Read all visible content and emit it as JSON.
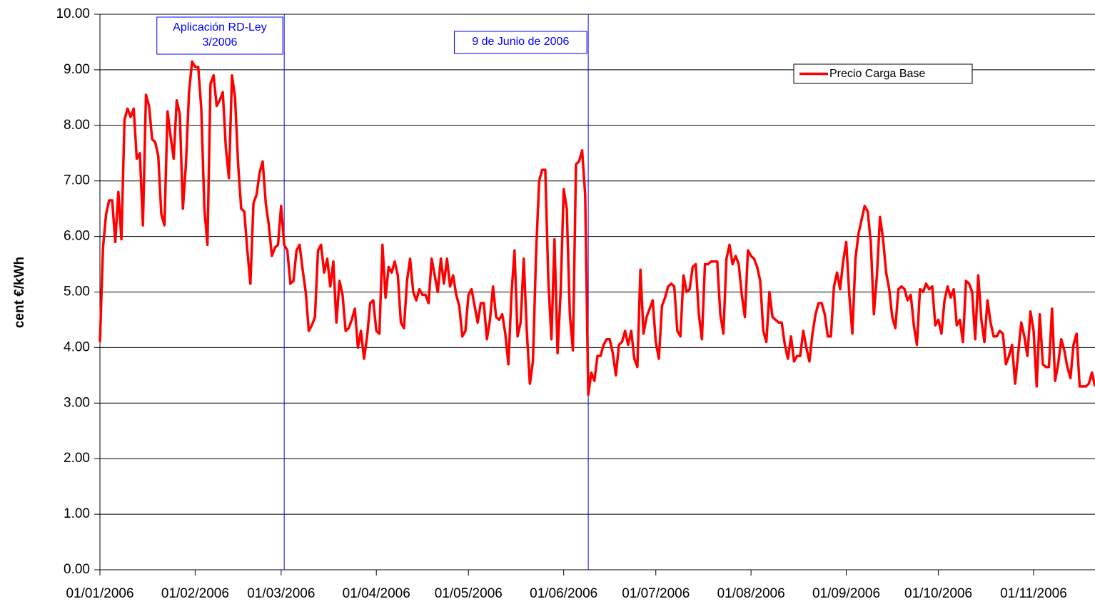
{
  "chart_data": {
    "type": "line",
    "y_label": "cent €/kWh",
    "x": [
      "01/01/2006",
      "02/01/2006",
      "03/01/2006",
      "04/01/2006",
      "05/01/2006",
      "06/01/2006",
      "07/01/2006",
      "08/01/2006",
      "09/01/2006",
      "10/01/2006",
      "11/01/2006",
      "12/01/2006",
      "13/01/2006",
      "14/01/2006",
      "15/01/2006",
      "16/01/2006",
      "17/01/2006",
      "18/01/2006",
      "19/01/2006",
      "20/01/2006",
      "21/01/2006",
      "22/01/2006",
      "23/01/2006",
      "24/01/2006",
      "25/01/2006",
      "26/01/2006",
      "27/01/2006",
      "28/01/2006",
      "29/01/2006",
      "30/01/2006",
      "31/01/2006",
      "01/02/2006",
      "02/02/2006",
      "03/02/2006",
      "04/02/2006",
      "05/02/2006",
      "06/02/2006",
      "07/02/2006",
      "08/02/2006",
      "09/02/2006",
      "10/02/2006",
      "11/02/2006",
      "12/02/2006",
      "13/02/2006",
      "14/02/2006",
      "15/02/2006",
      "16/02/2006",
      "17/02/2006",
      "18/02/2006",
      "19/02/2006",
      "20/02/2006",
      "21/02/2006",
      "22/02/2006",
      "23/02/2006",
      "24/02/2006",
      "25/02/2006",
      "26/02/2006",
      "27/02/2006",
      "28/02/2006",
      "01/03/2006",
      "02/03/2006",
      "03/03/2006",
      "04/03/2006",
      "05/03/2006",
      "06/03/2006",
      "07/03/2006",
      "08/03/2006",
      "09/03/2006",
      "10/03/2006",
      "11/03/2006",
      "12/03/2006",
      "13/03/2006",
      "14/03/2006",
      "15/03/2006",
      "16/03/2006",
      "17/03/2006",
      "18/03/2006",
      "19/03/2006",
      "20/03/2006",
      "21/03/2006",
      "22/03/2006",
      "23/03/2006",
      "24/03/2006",
      "25/03/2006",
      "26/03/2006",
      "27/03/2006",
      "28/03/2006",
      "29/03/2006",
      "30/03/2006",
      "31/03/2006",
      "01/04/2006",
      "02/04/2006",
      "03/04/2006",
      "04/04/2006",
      "05/04/2006",
      "06/04/2006",
      "07/04/2006",
      "08/04/2006",
      "09/04/2006",
      "10/04/2006",
      "11/04/2006",
      "12/04/2006",
      "13/04/2006",
      "14/04/2006",
      "15/04/2006",
      "16/04/2006",
      "17/04/2006",
      "18/04/2006",
      "19/04/2006",
      "20/04/2006",
      "21/04/2006",
      "22/04/2006",
      "23/04/2006",
      "24/04/2006",
      "25/04/2006",
      "26/04/2006",
      "27/04/2006",
      "28/04/2006",
      "29/04/2006",
      "30/04/2006",
      "01/05/2006",
      "02/05/2006",
      "03/05/2006",
      "04/05/2006",
      "05/05/2006",
      "06/05/2006",
      "07/05/2006",
      "08/05/2006",
      "09/05/2006",
      "10/05/2006",
      "11/05/2006",
      "12/05/2006",
      "13/05/2006",
      "14/05/2006",
      "15/05/2006",
      "16/05/2006",
      "17/05/2006",
      "18/05/2006",
      "19/05/2006",
      "20/05/2006",
      "21/05/2006",
      "22/05/2006",
      "23/05/2006",
      "24/05/2006",
      "25/05/2006",
      "26/05/2006",
      "27/05/2006",
      "28/05/2006",
      "29/05/2006",
      "30/05/2006",
      "31/05/2006",
      "01/06/2006",
      "02/06/2006",
      "03/06/2006",
      "04/06/2006",
      "05/06/2006",
      "06/06/2006",
      "07/06/2006",
      "08/06/2006",
      "09/06/2006",
      "10/06/2006",
      "11/06/2006",
      "12/06/2006",
      "13/06/2006",
      "14/06/2006",
      "15/06/2006",
      "16/06/2006",
      "17/06/2006",
      "18/06/2006",
      "19/06/2006",
      "20/06/2006",
      "21/06/2006",
      "22/06/2006",
      "23/06/2006",
      "24/06/2006",
      "25/06/2006",
      "26/06/2006",
      "27/06/2006",
      "28/06/2006",
      "29/06/2006",
      "30/06/2006",
      "01/07/2006",
      "02/07/2006",
      "03/07/2006",
      "04/07/2006",
      "05/07/2006",
      "06/07/2006",
      "07/07/2006",
      "08/07/2006",
      "09/07/2006",
      "10/07/2006",
      "11/07/2006",
      "12/07/2006",
      "13/07/2006",
      "14/07/2006",
      "15/07/2006",
      "16/07/2006",
      "17/07/2006",
      "18/07/2006",
      "19/07/2006",
      "20/07/2006",
      "21/07/2006",
      "22/07/2006",
      "23/07/2006",
      "24/07/2006",
      "25/07/2006",
      "26/07/2006",
      "27/07/2006",
      "28/07/2006",
      "29/07/2006",
      "30/07/2006",
      "31/07/2006",
      "01/08/2006",
      "02/08/2006",
      "03/08/2006",
      "04/08/2006",
      "05/08/2006",
      "06/08/2006",
      "07/08/2006",
      "08/08/2006",
      "09/08/2006",
      "10/08/2006",
      "11/08/2006",
      "12/08/2006",
      "13/08/2006",
      "14/08/2006",
      "15/08/2006",
      "16/08/2006",
      "17/08/2006",
      "18/08/2006",
      "19/08/2006",
      "20/08/2006",
      "21/08/2006",
      "22/08/2006",
      "23/08/2006",
      "24/08/2006",
      "25/08/2006",
      "26/08/2006",
      "27/08/2006",
      "28/08/2006",
      "29/08/2006",
      "30/08/2006",
      "31/08/2006",
      "01/09/2006",
      "02/09/2006",
      "03/09/2006",
      "04/09/2006",
      "05/09/2006",
      "06/09/2006",
      "07/09/2006",
      "08/09/2006",
      "09/09/2006",
      "10/09/2006",
      "11/09/2006",
      "12/09/2006",
      "13/09/2006",
      "14/09/2006",
      "15/09/2006",
      "16/09/2006",
      "17/09/2006",
      "18/09/2006",
      "19/09/2006",
      "20/09/2006",
      "21/09/2006",
      "22/09/2006",
      "23/09/2006",
      "24/09/2006",
      "25/09/2006",
      "26/09/2006",
      "27/09/2006",
      "28/09/2006",
      "29/09/2006",
      "30/09/2006",
      "01/10/2006",
      "02/10/2006",
      "03/10/2006",
      "04/10/2006",
      "05/10/2006",
      "06/10/2006",
      "07/10/2006",
      "08/10/2006",
      "09/10/2006",
      "10/10/2006",
      "11/10/2006",
      "12/10/2006",
      "13/10/2006",
      "14/10/2006",
      "15/10/2006",
      "16/10/2006",
      "17/10/2006",
      "18/10/2006",
      "19/10/2006",
      "20/10/2006",
      "21/10/2006",
      "22/10/2006",
      "23/10/2006",
      "24/10/2006",
      "25/10/2006",
      "26/10/2006",
      "27/10/2006",
      "28/10/2006",
      "29/10/2006",
      "30/10/2006",
      "31/10/2006",
      "01/11/2006",
      "02/11/2006",
      "03/11/2006",
      "04/11/2006",
      "05/11/2006",
      "06/11/2006",
      "07/11/2006",
      "08/11/2006",
      "09/11/2006",
      "10/11/2006",
      "11/11/2006",
      "12/11/2006",
      "13/11/2006",
      "14/11/2006",
      "15/11/2006",
      "16/11/2006",
      "17/11/2006",
      "18/11/2006",
      "19/11/2006",
      "20/11/2006",
      "21/11/2006"
    ],
    "series": [
      {
        "name": "Precio Carga Base",
        "color": "#ff0000",
        "values": [
          4.1,
          5.8,
          6.4,
          6.65,
          6.65,
          5.9,
          6.8,
          5.95,
          8.1,
          8.3,
          8.15,
          8.3,
          7.4,
          7.5,
          6.2,
          8.55,
          8.35,
          7.75,
          7.7,
          7.45,
          6.4,
          6.2,
          8.25,
          7.8,
          7.4,
          8.45,
          8.2,
          6.5,
          7.3,
          8.6,
          9.15,
          9.05,
          9.05,
          8.3,
          6.5,
          5.85,
          8.75,
          8.9,
          8.35,
          8.45,
          8.6,
          7.6,
          7.05,
          8.9,
          8.5,
          7.3,
          6.5,
          6.45,
          5.75,
          5.15,
          6.6,
          6.75,
          7.15,
          7.35,
          6.6,
          6.2,
          5.65,
          5.8,
          5.85,
          6.55,
          5.85,
          5.75,
          5.15,
          5.2,
          5.75,
          5.85,
          5.4,
          5.0,
          4.3,
          4.4,
          4.55,
          5.75,
          5.85,
          5.35,
          5.6,
          5.1,
          5.55,
          4.45,
          5.2,
          4.95,
          4.3,
          4.35,
          4.5,
          4.7,
          4.0,
          4.3,
          3.8,
          4.2,
          4.8,
          4.85,
          4.3,
          4.25,
          5.85,
          4.9,
          5.45,
          5.35,
          5.55,
          5.3,
          4.45,
          4.35,
          5.2,
          5.6,
          5.0,
          4.85,
          5.05,
          4.95,
          4.95,
          4.8,
          5.6,
          5.3,
          5.0,
          5.6,
          5.15,
          5.6,
          5.1,
          5.3,
          4.95,
          4.75,
          4.2,
          4.3,
          4.95,
          5.05,
          4.75,
          4.45,
          4.8,
          4.8,
          4.15,
          4.5,
          5.1,
          4.55,
          4.5,
          4.6,
          4.25,
          3.7,
          4.95,
          5.75,
          4.2,
          4.45,
          5.6,
          4.3,
          3.35,
          3.75,
          5.7,
          7.0,
          7.2,
          7.2,
          5.2,
          4.15,
          5.95,
          3.9,
          5.0,
          6.85,
          6.5,
          4.6,
          3.95,
          7.3,
          7.35,
          7.55,
          6.75,
          3.15,
          3.55,
          3.4,
          3.85,
          3.85,
          4.05,
          4.15,
          4.15,
          3.9,
          3.5,
          4.05,
          4.1,
          4.3,
          4.05,
          4.3,
          3.8,
          3.65,
          5.4,
          4.25,
          4.55,
          4.7,
          4.85,
          4.1,
          3.8,
          4.75,
          4.9,
          5.1,
          5.15,
          5.1,
          4.3,
          4.2,
          5.3,
          5.0,
          5.05,
          5.45,
          5.5,
          4.6,
          4.15,
          5.5,
          5.5,
          5.55,
          5.55,
          5.55,
          4.6,
          4.25,
          5.6,
          5.85,
          5.5,
          5.65,
          5.5,
          4.95,
          4.55,
          5.75,
          5.65,
          5.6,
          5.45,
          5.2,
          4.3,
          4.1,
          5.0,
          4.55,
          4.5,
          4.45,
          4.45,
          4.05,
          3.8,
          4.2,
          3.75,
          3.85,
          3.85,
          4.3,
          4.0,
          3.75,
          4.25,
          4.6,
          4.8,
          4.8,
          4.6,
          4.2,
          4.2,
          5.1,
          5.35,
          5.05,
          5.55,
          5.9,
          4.95,
          4.25,
          5.6,
          6.05,
          6.3,
          6.55,
          6.45,
          5.9,
          4.6,
          5.3,
          6.35,
          5.95,
          5.35,
          5.05,
          4.55,
          4.35,
          5.05,
          5.1,
          5.05,
          4.85,
          4.95,
          4.4,
          4.05,
          5.05,
          5.0,
          5.15,
          5.05,
          5.1,
          4.4,
          4.5,
          4.25,
          4.85,
          5.1,
          4.9,
          5.05,
          4.4,
          4.5,
          4.1,
          5.2,
          5.15,
          5.0,
          4.15,
          5.3,
          4.5,
          4.1,
          4.85,
          4.45,
          4.2,
          4.2,
          4.3,
          4.25,
          3.7,
          3.85,
          4.05,
          3.35,
          3.9,
          4.45,
          4.2,
          3.85,
          4.65,
          4.3,
          3.3,
          4.6,
          3.7,
          3.65,
          3.65,
          4.7,
          3.4,
          3.7,
          4.15,
          3.95,
          3.65,
          3.45,
          4.05,
          4.25,
          3.3,
          3.3,
          3.3,
          3.35,
          3.55,
          3.3
        ]
      }
    ],
    "xlim": [
      "01/01/2006",
      "21/11/2006"
    ],
    "xticks": [
      "01/01/2006",
      "01/02/2006",
      "01/03/2006",
      "01/04/2006",
      "01/05/2006",
      "01/06/2006",
      "01/07/2006",
      "01/08/2006",
      "01/09/2006",
      "01/10/2006",
      "01/11/2006"
    ],
    "ylim": [
      0,
      10
    ],
    "yticks": [
      {
        "value": 0,
        "label": "0.00"
      },
      {
        "value": 1,
        "label": "1.00"
      },
      {
        "value": 2,
        "label": "2.00"
      },
      {
        "value": 3,
        "label": "3.00"
      },
      {
        "value": 4,
        "label": "4.00"
      },
      {
        "value": 5,
        "label": "5.00"
      },
      {
        "value": 6,
        "label": "6.00"
      },
      {
        "value": 7,
        "label": "7.00"
      },
      {
        "value": 8,
        "label": "8.00"
      },
      {
        "value": 9,
        "label": "9.00"
      },
      {
        "value": 10,
        "label": "10.00"
      }
    ],
    "grid": true,
    "legend": "top-right",
    "annotations": [
      {
        "x": "02/03/2006",
        "lines": [
          "Aplicación RD-Ley",
          "3/2006"
        ],
        "color": "#0000ff"
      },
      {
        "x": "09/06/2006",
        "lines": [
          "9 de Junio de 2006"
        ],
        "color": "#0000ff"
      }
    ]
  }
}
